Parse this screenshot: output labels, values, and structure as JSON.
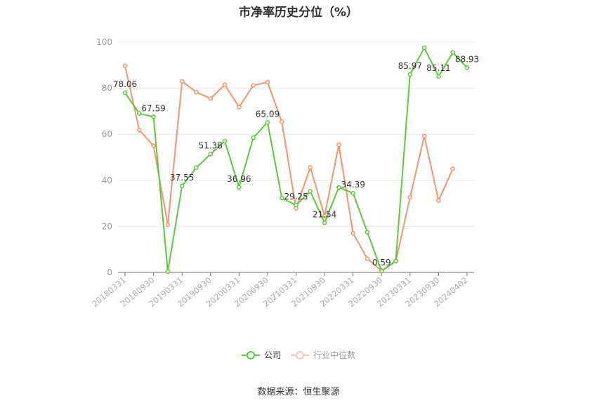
{
  "title": "市净率历史分位（%）",
  "legend": [
    {
      "label": "公司",
      "color": "#5cc93a",
      "icon": "line-circle-icon"
    },
    {
      "label": "行业中位数",
      "color": "#f5946a",
      "icon": "line-circle-icon"
    }
  ],
  "source": "数据来源：恒生聚源",
  "chart_data": {
    "type": "line",
    "title": "市净率历史分位（%）",
    "xlabel": "",
    "ylabel": "",
    "ylim": [
      0,
      100
    ],
    "yticks": [
      0,
      20,
      40,
      60,
      80,
      100
    ],
    "grid": true,
    "legend_position": "bottom",
    "x_tick_labels": [
      "20180331",
      "20180930",
      "20190331",
      "20190930",
      "20200331",
      "20200930",
      "20210331",
      "20210930",
      "20220331",
      "20220930",
      "20230331",
      "20230930",
      "20240402"
    ],
    "x": [
      "20180331",
      "20180630",
      "20180930",
      "20181231",
      "20190331",
      "20190630",
      "20190930",
      "20191231",
      "20200331",
      "20200630",
      "20200930",
      "20201231",
      "20210331",
      "20210630",
      "20210930",
      "20211231",
      "20220331",
      "20220630",
      "20220930",
      "20221231",
      "20230331",
      "20230630",
      "20230930",
      "20231231",
      "20240402"
    ],
    "series": [
      {
        "name": "公司",
        "color": "#5cc93a",
        "values": [
          78.06,
          69.0,
          67.59,
          0.3,
          37.55,
          45.5,
          51.38,
          57.0,
          36.96,
          58.5,
          65.09,
          32.3,
          29.25,
          35.2,
          21.54,
          36.9,
          34.39,
          17.5,
          0.59,
          5.0,
          85.97,
          97.5,
          85.11,
          95.5,
          88.93
        ],
        "labels": {
          "0": "78.06",
          "2": "67.59",
          "4": "37.55",
          "6": "51.38",
          "8": "36.96",
          "10": "65.09",
          "12": "29.25",
          "14": "21.54",
          "16": "34.39",
          "18": "0.59",
          "20": "85.97",
          "22": "85.11",
          "24": "88.93"
        }
      },
      {
        "name": "行业中位数",
        "color": "#f5946a",
        "values": [
          89.7,
          61.8,
          55.0,
          20.7,
          83.0,
          78.3,
          75.5,
          81.5,
          71.8,
          81.2,
          82.6,
          65.5,
          27.8,
          45.6,
          24.5,
          55.4,
          17.0,
          5.9,
          0.8,
          4.8,
          32.6,
          59.2,
          31.2,
          45.0,
          null
        ]
      }
    ]
  }
}
